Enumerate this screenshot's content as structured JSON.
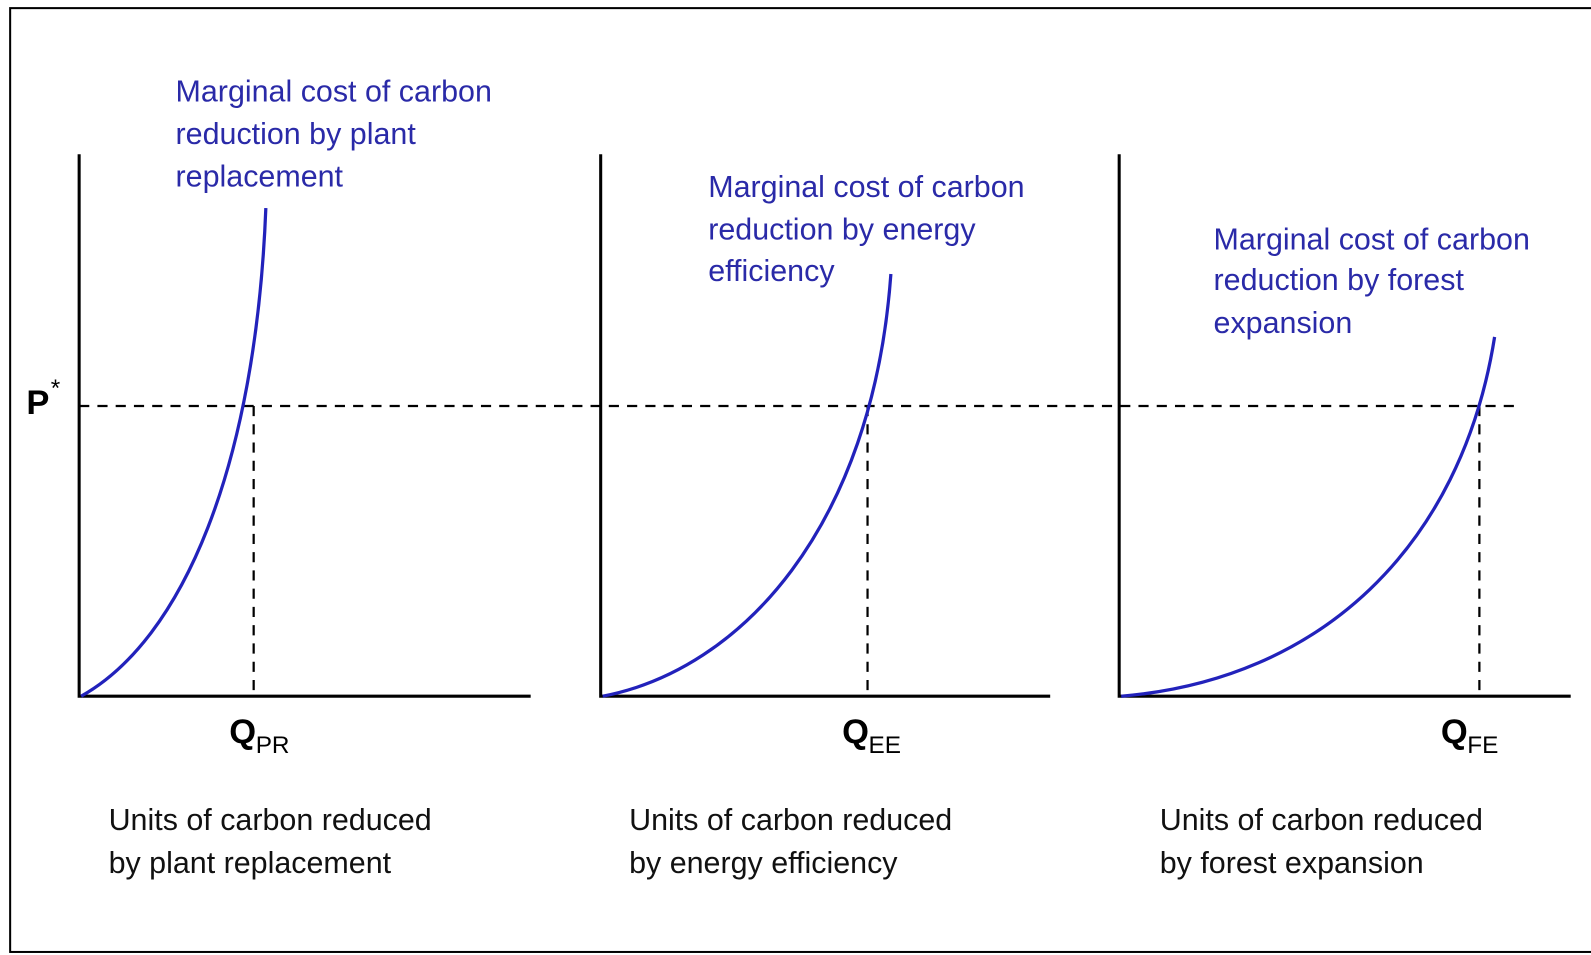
{
  "p_label": {
    "main": "P",
    "sup": "*"
  },
  "panels": [
    {
      "curve_label": [
        "Marginal cost of carbon",
        "reduction by plant",
        "replacement"
      ],
      "q_label": {
        "main": "Q",
        "sub": "PR"
      },
      "axis_label": [
        "Units of carbon reduced",
        "by plant replacement"
      ]
    },
    {
      "curve_label": [
        "Marginal cost of carbon",
        "reduction by energy",
        "efficiency"
      ],
      "q_label": {
        "main": "Q",
        "sub": "EE"
      },
      "axis_label": [
        "Units of carbon reduced",
        "by energy efficiency"
      ]
    },
    {
      "curve_label": [
        "Marginal cost of carbon",
        "reduction by forest",
        "expansion"
      ],
      "q_label": {
        "main": "Q",
        "sub": "FE"
      },
      "axis_label": [
        "Units of carbon reduced",
        "by forest expansion"
      ]
    }
  ]
}
